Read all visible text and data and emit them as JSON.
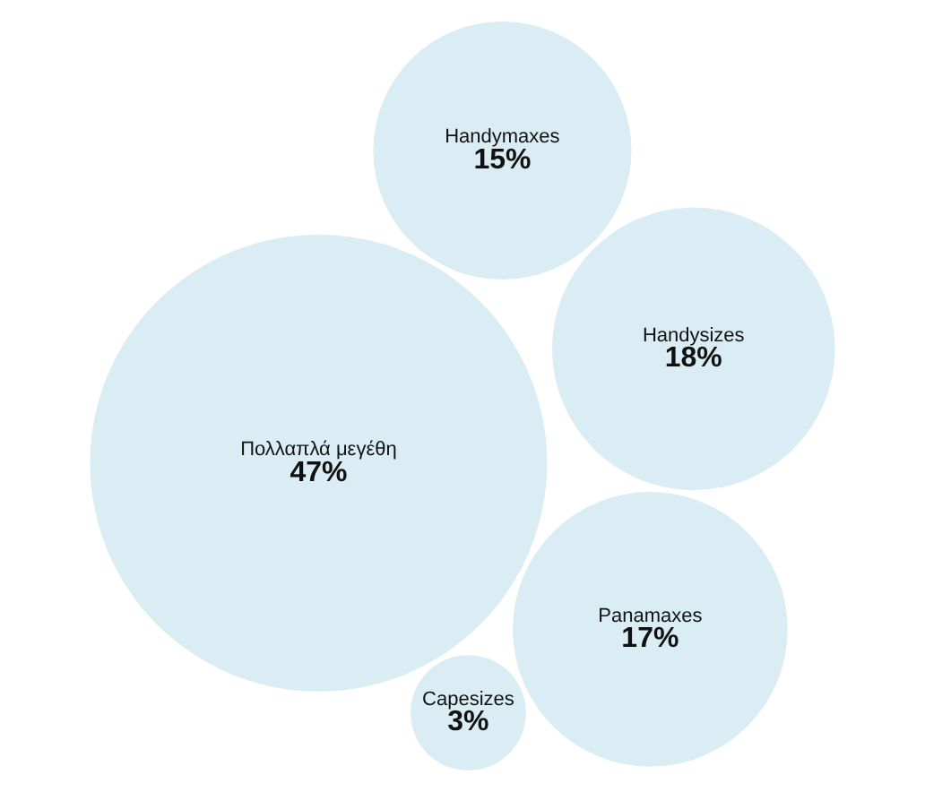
{
  "chart_data": {
    "type": "other",
    "categories": [
      "Πολλαπλά μεγέθη",
      "Handysizes",
      "Panamaxes",
      "Handymaxes",
      "Capesizes"
    ],
    "values": [
      47,
      18,
      17,
      15,
      3
    ],
    "value_labels": [
      "47%",
      "18%",
      "17%",
      "15%",
      "3%"
    ],
    "color": "#daedf4"
  }
}
